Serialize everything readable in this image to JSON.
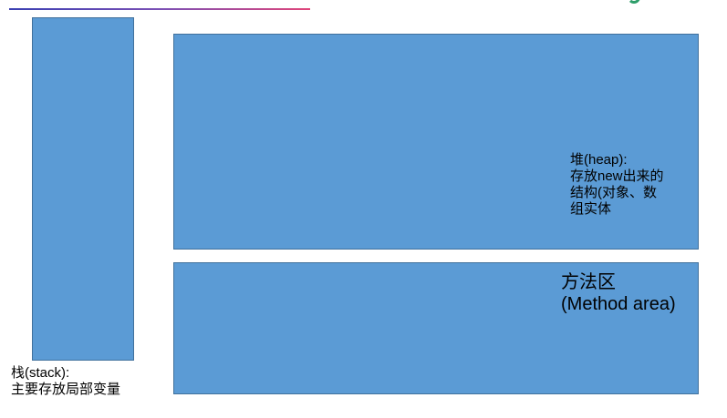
{
  "colors": {
    "block_fill": "#5b9bd5",
    "block_border": "#41719c",
    "text": "#000000"
  },
  "stack": {
    "line1": "栈(stack):",
    "line2": "主要存放局部变量"
  },
  "heap": {
    "line1": "堆(heap):",
    "line2": "存放new出来的",
    "line3": "结构(对象、数",
    "line4": "组实体"
  },
  "method_area": {
    "line1": "方法区",
    "line2": "(Method area)"
  }
}
